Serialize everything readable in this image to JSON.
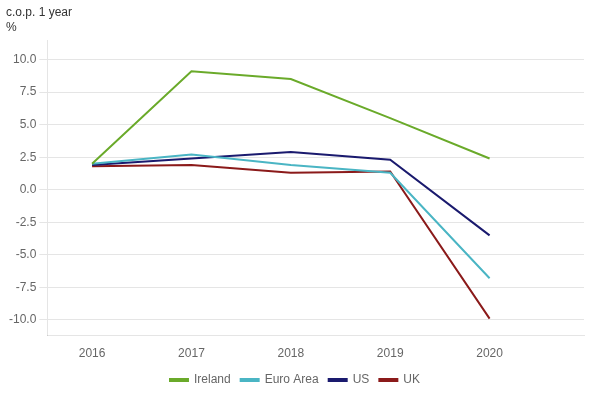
{
  "chart_data": {
    "type": "line",
    "annotations": [
      "c.o.p. 1 year",
      "%"
    ],
    "x": [
      2016,
      2017,
      2018,
      2019,
      2020
    ],
    "series": [
      {
        "name": "Ireland",
        "color": "#6aaa2a",
        "values": [
          2.0,
          9.1,
          8.5,
          5.5,
          2.4
        ]
      },
      {
        "name": "Euro Area",
        "color": "#4ab5c4",
        "values": [
          2.0,
          2.7,
          1.9,
          1.3,
          -6.8
        ]
      },
      {
        "name": "US",
        "color": "#1a1a6e",
        "values": [
          1.9,
          2.4,
          2.9,
          2.3,
          -3.5
        ]
      },
      {
        "name": "UK",
        "color": "#8b1a1a",
        "values": [
          1.8,
          1.9,
          1.3,
          1.4,
          -9.9
        ]
      }
    ],
    "xlim": [
      2015.55,
      2020.95
    ],
    "xticks": [
      2016,
      2017,
      2018,
      2019,
      2020
    ],
    "ylim": [
      -11.2,
      11.5
    ],
    "yticks": [
      {
        "value": -10.0,
        "label": "-10.0"
      },
      -7.5,
      {
        "value": -5.0,
        "label": "-5.0"
      },
      -2.5,
      {
        "value": 0.0,
        "label": "0.0"
      },
      2.5,
      {
        "value": 5.0,
        "label": "5.0"
      },
      7.5,
      {
        "value": 10.0,
        "label": "10.0"
      }
    ],
    "grid": "y",
    "legend": "bottom"
  }
}
